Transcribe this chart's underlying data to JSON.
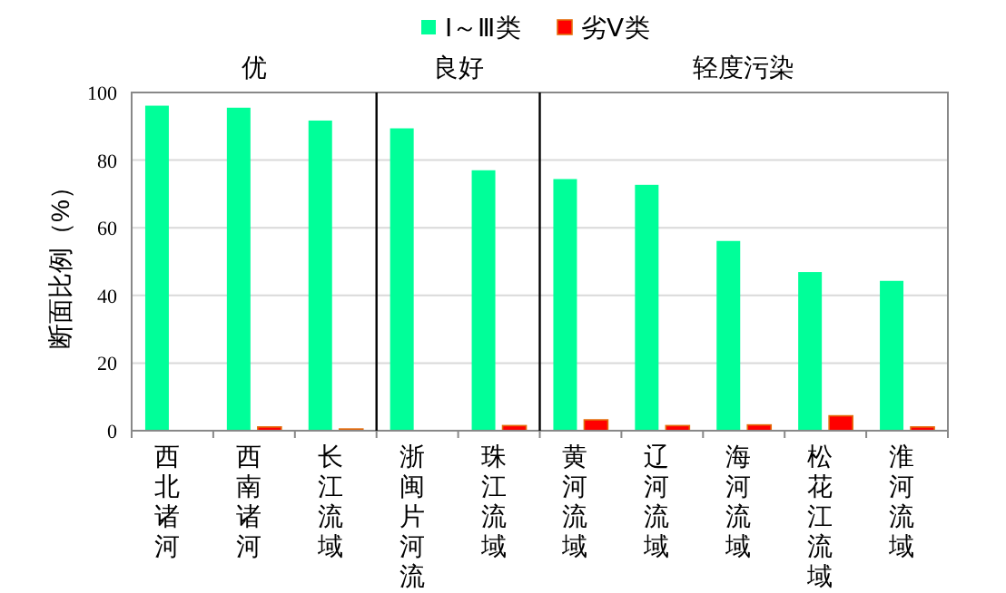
{
  "chart_data": {
    "type": "bar",
    "ylabel": "断面比例（%）",
    "categories": [
      "西北诸河",
      "西南诸河",
      "长江流域",
      "浙闽片河流",
      "珠江流域",
      "黄河流域",
      "辽河流域",
      "海河流域",
      "松花江流域",
      "淮河流域"
    ],
    "series": [
      {
        "name": "Ⅰ～Ⅲ类",
        "color": "#00ff99",
        "values": [
          96.1,
          95.5,
          91.7,
          89.4,
          77.0,
          74.4,
          72.7,
          56.1,
          46.9,
          44.3
        ]
      },
      {
        "name": "劣Ⅴ类",
        "color": "#ff0000",
        "values": [
          0,
          1.1,
          0.5,
          0,
          1.5,
          3.2,
          1.5,
          1.7,
          4.4,
          1.1
        ]
      }
    ],
    "ylim": [
      0,
      100
    ],
    "yticks": [
      0,
      20,
      40,
      60,
      80,
      100
    ],
    "grid": "y",
    "legend": "top",
    "annotations": [
      "优",
      "良好",
      "轻度污染"
    ]
  }
}
